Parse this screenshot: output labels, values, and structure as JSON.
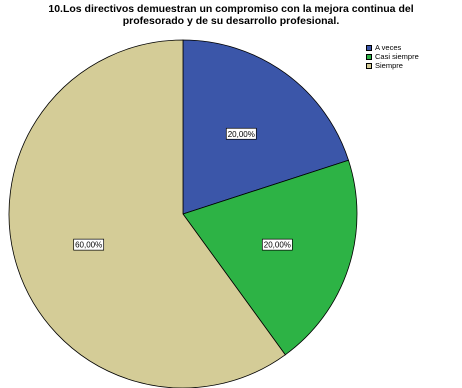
{
  "chart_data": {
    "type": "pie",
    "title": "10.Los directivos  demuestran un compromiso con la mejora continua del",
    "subtitle": "profesorado y de su desarrollo profesional.",
    "slices": [
      {
        "label": "A veces",
        "value": 20.0,
        "display": "20,00%",
        "color": "#3b56a9"
      },
      {
        "label": "Casi siempre",
        "value": 20.0,
        "display": "20,00%",
        "color": "#2db345"
      },
      {
        "label": "Siempre",
        "value": 60.0,
        "display": "60,00%",
        "color": "#d4cc97"
      }
    ],
    "start_angle_deg": 0,
    "direction": "clockwise",
    "legend_position": "top-right"
  }
}
